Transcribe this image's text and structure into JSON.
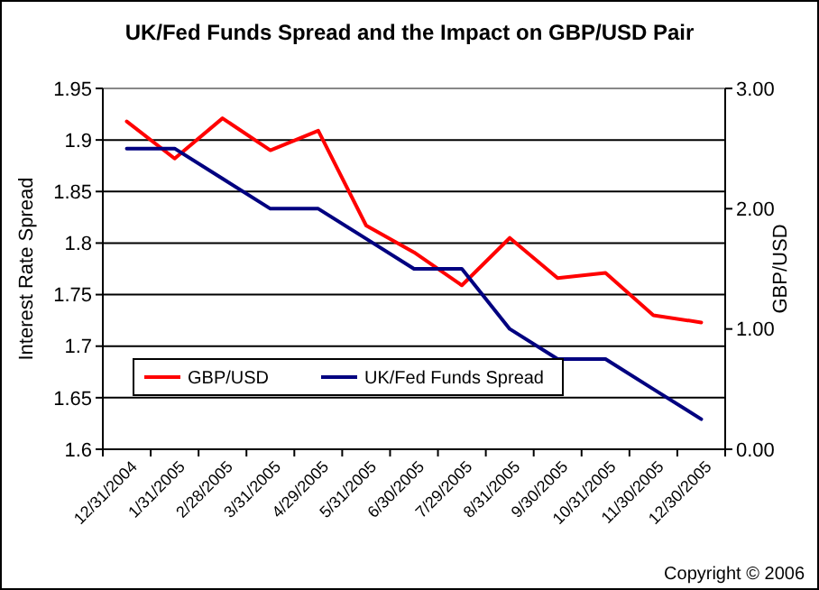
{
  "chart_data": {
    "type": "line",
    "title": "UK/Fed Funds Spread and the Impact on GBP/USD Pair",
    "ylabel": "Interest Rate Spread",
    "y2label": "GBP/USD",
    "categories": [
      "12/31/2004",
      "1/31/2005",
      "2/28/2005",
      "3/31/2005",
      "4/29/2005",
      "5/31/2005",
      "6/30/2005",
      "7/29/2005",
      "8/31/2005",
      "9/30/2005",
      "10/31/2005",
      "11/30/2005",
      "12/30/2005"
    ],
    "series": [
      {
        "name": "GBP/USD",
        "color": "#ff0000",
        "values": [
          1.918,
          1.882,
          1.921,
          1.89,
          1.909,
          1.817,
          1.791,
          1.759,
          1.805,
          1.766,
          1.771,
          1.73,
          1.723
        ]
      },
      {
        "name": "UK/Fed Funds Spread",
        "color": "#000080",
        "axis": "y2",
        "values": [
          2.5,
          2.5,
          2.25,
          2,
          2,
          1.75,
          1.5,
          1.5,
          1,
          0.75,
          0.75,
          0.5,
          0.25
        ]
      }
    ],
    "ylim": [
      1.6,
      1.95
    ],
    "yticks": [
      1.6,
      1.65,
      1.7,
      1.75,
      1.8,
      1.85,
      1.9,
      1.95
    ],
    "y2lim": [
      0,
      3
    ],
    "y2ticks": [
      {
        "value": 0,
        "label": "0.00"
      },
      {
        "value": 1,
        "label": "1.00"
      },
      {
        "value": 2,
        "label": "2.00"
      },
      {
        "value": 3,
        "label": "3.00"
      }
    ],
    "grid": "y",
    "legend": "bottom left",
    "marker": "none",
    "line_style": "solid",
    "annotations": [
      "Copyright © 2006"
    ]
  }
}
